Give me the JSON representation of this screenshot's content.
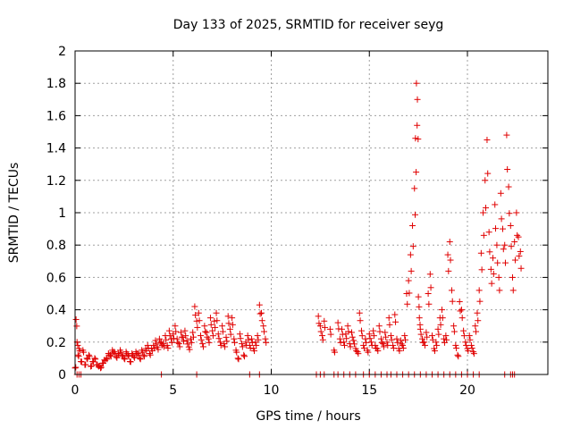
{
  "chart_data": {
    "type": "scatter",
    "title": "Day 133 of 2025, SRMTID for receiver seyg",
    "xlabel": "GPS time / hours",
    "ylabel": "SRMTID / TECUs",
    "xlim": [
      0,
      24.1
    ],
    "ylim": [
      0,
      2
    ],
    "xticks": [
      0,
      5,
      10,
      15,
      20
    ],
    "xtick_labels": [
      "0",
      "5",
      "10",
      "15",
      "20"
    ],
    "yticks": [
      0,
      0.2,
      0.4,
      0.6,
      0.8,
      1,
      1.2,
      1.4,
      1.6,
      1.8,
      2
    ],
    "ytick_labels": [
      "0",
      "0.2",
      "0.4",
      "0.6",
      "0.8",
      "1",
      "1.2",
      "1.4",
      "1.6",
      "1.8",
      "2"
    ],
    "grid": true,
    "marker": "plus",
    "color": "#e00000",
    "series": [
      {
        "name": "SRMTID",
        "x": [
          0.0,
          0.05,
          0.1,
          0.15,
          0.2,
          0.3,
          0.4,
          0.5,
          0.6,
          0.7,
          0.8,
          0.9,
          1.0,
          1.1,
          1.2,
          1.3,
          1.4,
          1.5,
          1.6,
          1.7,
          1.8,
          1.9,
          2.0,
          2.1,
          2.2,
          2.3,
          2.4,
          2.5,
          2.6,
          2.7,
          2.8,
          2.9,
          3.0,
          3.1,
          3.2,
          3.3,
          3.4,
          3.5,
          3.6,
          3.7,
          3.8,
          3.9,
          4.0,
          4.1,
          4.2,
          4.3,
          4.4,
          4.5,
          4.6,
          4.7,
          4.8,
          4.9,
          5.0,
          5.1,
          5.2,
          5.3,
          5.4,
          5.5,
          5.6,
          5.7,
          5.8,
          5.9,
          6.0,
          6.1,
          6.2,
          6.3,
          6.4,
          6.5,
          6.6,
          6.7,
          6.8,
          6.9,
          7.0,
          7.1,
          7.2,
          7.3,
          7.4,
          7.5,
          7.6,
          7.7,
          7.8,
          7.9,
          8.0,
          8.1,
          8.2,
          8.3,
          8.4,
          8.5,
          8.6,
          8.7,
          8.8,
          8.9,
          9.0,
          9.1,
          9.2,
          9.3,
          9.4,
          9.5,
          9.6,
          9.7,
          12.4,
          12.5,
          12.6,
          12.7,
          13.0,
          13.2,
          13.4,
          13.5,
          13.6,
          13.7,
          13.8,
          13.9,
          14.0,
          14.1,
          14.2,
          14.3,
          14.4,
          14.5,
          14.6,
          14.7,
          14.8,
          14.9,
          15.0,
          15.1,
          15.2,
          15.3,
          15.4,
          15.5,
          15.6,
          15.7,
          15.8,
          15.9,
          16.0,
          16.1,
          16.2,
          16.3,
          16.4,
          16.5,
          16.6,
          16.7,
          16.8,
          16.9,
          17.0,
          17.1,
          17.2,
          17.3,
          17.35,
          17.4,
          17.45,
          17.5,
          17.55,
          17.6,
          17.7,
          17.8,
          17.9,
          18.0,
          18.1,
          18.2,
          18.3,
          18.4,
          18.5,
          18.6,
          18.7,
          18.8,
          18.9,
          19.0,
          19.1,
          19.2,
          19.3,
          19.4,
          19.5,
          19.6,
          19.7,
          19.8,
          19.9,
          20.0,
          20.1,
          20.2,
          20.3,
          20.4,
          20.5,
          20.6,
          20.7,
          20.8,
          20.9,
          21.0,
          21.1,
          21.2,
          21.3,
          21.4,
          21.5,
          21.6,
          21.7,
          21.8,
          21.9,
          22.0,
          22.1,
          22.2,
          22.3,
          22.4,
          22.5,
          22.6,
          22.7
        ],
        "y": [
          0.04,
          0.34,
          0.2,
          0.12,
          0.16,
          0.08,
          0.15,
          0.06,
          0.1,
          0.12,
          0.05,
          0.08,
          0.1,
          0.06,
          0.05,
          0.04,
          0.07,
          0.09,
          0.1,
          0.13,
          0.12,
          0.15,
          0.14,
          0.11,
          0.13,
          0.15,
          0.12,
          0.1,
          0.14,
          0.12,
          0.08,
          0.13,
          0.11,
          0.14,
          0.13,
          0.1,
          0.15,
          0.12,
          0.16,
          0.18,
          0.13,
          0.16,
          0.18,
          0.21,
          0.17,
          0.22,
          0.2,
          0.19,
          0.24,
          0.18,
          0.27,
          0.22,
          0.25,
          0.3,
          0.22,
          0.19,
          0.26,
          0.23,
          0.27,
          0.21,
          0.17,
          0.22,
          0.26,
          0.42,
          0.33,
          0.38,
          0.24,
          0.19,
          0.3,
          0.26,
          0.22,
          0.35,
          0.27,
          0.33,
          0.38,
          0.25,
          0.2,
          0.3,
          0.19,
          0.23,
          0.36,
          0.28,
          0.35,
          0.22,
          0.15,
          0.1,
          0.25,
          0.19,
          0.12,
          0.2,
          0.24,
          0.18,
          0.22,
          0.16,
          0.2,
          0.24,
          0.43,
          0.38,
          0.3,
          0.22,
          0.36,
          0.3,
          0.24,
          0.33,
          0.28,
          0.15,
          0.32,
          0.22,
          0.28,
          0.2,
          0.25,
          0.3,
          0.19,
          0.26,
          0.21,
          0.16,
          0.14,
          0.38,
          0.27,
          0.18,
          0.22,
          0.15,
          0.25,
          0.2,
          0.27,
          0.18,
          0.16,
          0.3,
          0.22,
          0.19,
          0.26,
          0.2,
          0.35,
          0.24,
          0.18,
          0.37,
          0.22,
          0.16,
          0.21,
          0.18,
          0.24,
          0.5,
          0.58,
          0.74,
          0.92,
          1.15,
          1.46,
          1.8,
          1.7,
          0.48,
          0.35,
          0.28,
          0.22,
          0.2,
          0.26,
          0.5,
          0.62,
          0.24,
          0.16,
          0.2,
          0.28,
          0.35,
          0.4,
          0.22,
          0.24,
          0.74,
          0.82,
          0.52,
          0.3,
          0.18,
          0.12,
          0.45,
          0.4,
          0.27,
          0.2,
          0.16,
          0.24,
          0.18,
          0.14,
          0.3,
          0.38,
          0.52,
          0.75,
          1.0,
          1.2,
          1.45,
          0.88,
          0.65,
          0.72,
          1.05,
          0.8,
          0.6,
          1.12,
          0.9,
          0.8,
          1.48,
          1.16,
          0.92,
          0.6,
          0.82,
          1.0,
          0.85,
          0.76
        ]
      }
    ],
    "baseline_x": [
      0.1,
      0.2,
      0.3,
      4.4,
      6.2,
      8.9,
      9.4,
      12.3,
      12.5,
      12.7,
      13.2,
      13.4,
      13.7,
      14.0,
      14.3,
      14.7,
      15.0,
      15.3,
      15.6,
      15.9,
      16.1,
      16.4,
      16.7,
      17.0,
      17.3,
      17.6,
      17.9,
      18.2,
      18.5,
      18.8,
      19.1,
      19.4,
      19.7,
      20.0,
      20.3,
      20.6,
      21.9,
      22.2,
      22.3,
      22.4
    ]
  }
}
